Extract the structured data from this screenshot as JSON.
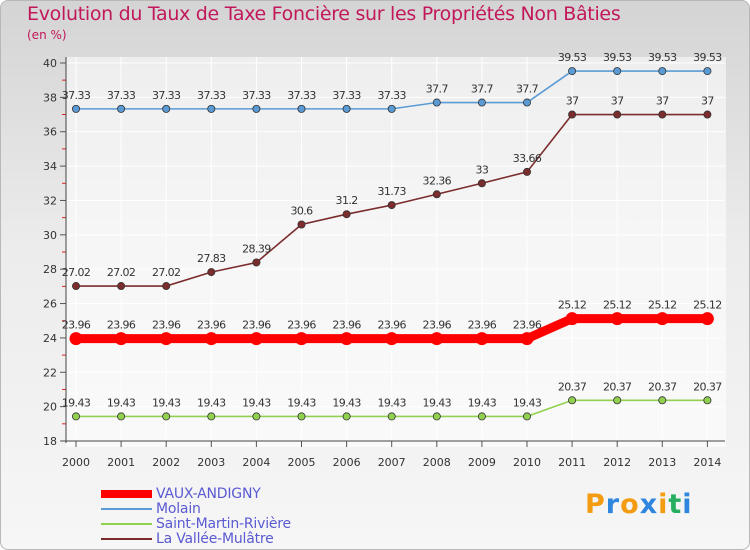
{
  "chart_data": {
    "type": "line",
    "title": "Evolution du Taux de Taxe Foncière sur les Propriétés Non Bâties",
    "subtitle": "(en %)",
    "xlabel": "",
    "ylabel": "(en %)",
    "ylim": [
      18,
      40
    ],
    "yticks": [
      18,
      20,
      22,
      24,
      26,
      28,
      30,
      32,
      34,
      36,
      38,
      40
    ],
    "grid": true,
    "categories": [
      "2000",
      "2001",
      "2002",
      "2003",
      "2004",
      "2005",
      "2006",
      "2007",
      "2008",
      "2009",
      "2010",
      "2011",
      "2012",
      "2013",
      "2014"
    ],
    "series": [
      {
        "name": "VAUX-ANDIGNY",
        "color": "#ff0000",
        "highlight": true,
        "values": [
          23.96,
          23.96,
          23.96,
          23.96,
          23.96,
          23.96,
          23.96,
          23.96,
          23.96,
          23.96,
          23.96,
          25.12,
          25.12,
          25.12,
          25.12
        ],
        "labels": [
          "23.96",
          "23.96",
          "23.96",
          "23.96",
          "23.96",
          "23.96",
          "23.96",
          "23.96",
          "23.96",
          "23.96",
          "23.96",
          "25.12",
          "25.12",
          "25.12",
          "25.12"
        ]
      },
      {
        "name": "Molain",
        "color": "#5b9bd5",
        "highlight": false,
        "values": [
          37.33,
          37.33,
          37.33,
          37.33,
          37.33,
          37.33,
          37.33,
          37.33,
          37.7,
          37.7,
          37.7,
          39.53,
          39.53,
          39.53,
          39.53
        ],
        "labels": [
          "37.33",
          "37.33",
          "37.33",
          "37.33",
          "37.33",
          "37.33",
          "37.33",
          "37.33",
          "37.7",
          "37.7",
          "37.7",
          "39.53",
          "39.53",
          "39.53",
          "39.53"
        ]
      },
      {
        "name": "Saint-Martin-Rivière",
        "color": "#92d050",
        "highlight": false,
        "values": [
          19.43,
          19.43,
          19.43,
          19.43,
          19.43,
          19.43,
          19.43,
          19.43,
          19.43,
          19.43,
          19.43,
          20.37,
          20.37,
          20.37,
          20.37
        ],
        "labels": [
          "19.43",
          "19.43",
          "19.43",
          "19.43",
          "19.43",
          "19.43",
          "19.43",
          "19.43",
          "19.43",
          "19.43",
          "19.43",
          "20.37",
          "20.37",
          "20.37",
          "20.37"
        ]
      },
      {
        "name": "La Vallée-Mulâtre",
        "color": "#7b2c2c",
        "highlight": false,
        "values": [
          27.02,
          27.02,
          27.02,
          27.83,
          28.39,
          30.6,
          31.2,
          31.73,
          32.36,
          33,
          33.66,
          37,
          37,
          37,
          37
        ],
        "labels": [
          "27.02",
          "27.02",
          "27.02",
          "27.83",
          "28.39",
          "30.6",
          "31.2",
          "31.73",
          "32.36",
          "33",
          "33.66",
          "37",
          "37",
          "37",
          "37"
        ]
      }
    ]
  },
  "logo": {
    "letters": [
      "P",
      "r",
      "o",
      "x",
      "i",
      "t",
      "i"
    ],
    "colors": [
      "#f39c12",
      "#2e86de",
      "#f39c12",
      "#2e86de",
      "#f39c12",
      "#27ae60",
      "#2e86de"
    ]
  }
}
